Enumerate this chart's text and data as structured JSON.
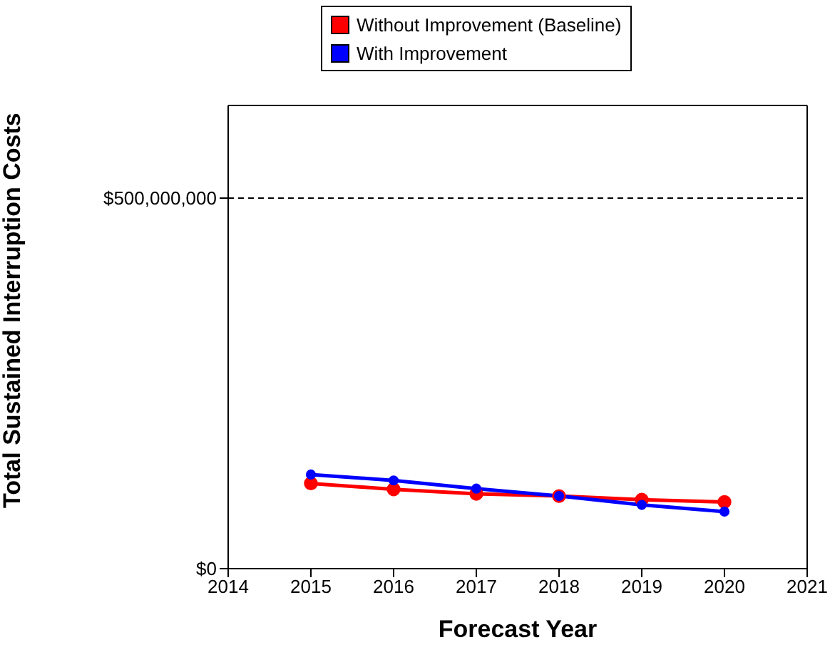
{
  "chart_data": {
    "type": "line",
    "xlabel": "Forecast Year",
    "ylabel": "Total Sustained Interruption Costs",
    "x": [
      2015,
      2016,
      2017,
      2018,
      2019,
      2020
    ],
    "series": [
      {
        "name": "Without Improvement (Baseline)",
        "color": "#ff0000",
        "values": [
          115000000,
          107000000,
          101000000,
          98000000,
          93000000,
          90000000
        ]
      },
      {
        "name": "With Improvement",
        "color": "#0000ff",
        "values": [
          127000000,
          119000000,
          108000000,
          98000000,
          86000000,
          77000000
        ]
      }
    ],
    "xlim": [
      2014,
      2021
    ],
    "xticks": [
      2014,
      2015,
      2016,
      2017,
      2018,
      2019,
      2020,
      2021
    ],
    "ylim": [
      0,
      625000000
    ],
    "yticks": [
      {
        "value": 0,
        "label": "$0"
      },
      {
        "value": 500000000,
        "label": "$500,000,000"
      }
    ],
    "grid": "y",
    "legend": "top",
    "marker": "circle",
    "line_style": "solid"
  }
}
